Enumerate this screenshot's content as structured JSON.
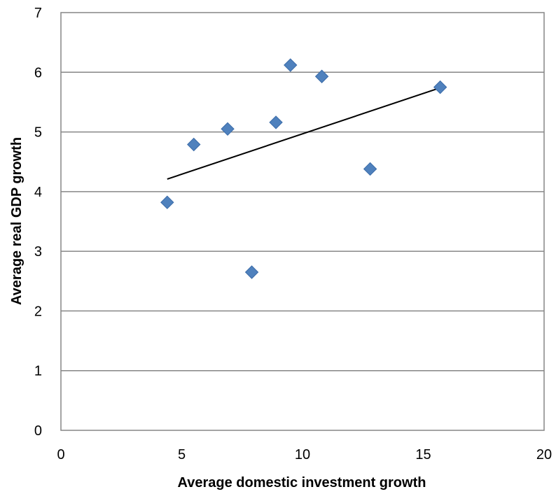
{
  "chart_data": {
    "type": "scatter",
    "title": "",
    "xlabel": "Average domestic investment growth",
    "ylabel": "Average real GDP growth",
    "xlim": [
      0,
      20
    ],
    "ylim": [
      0,
      7
    ],
    "x_ticks": [
      "0",
      "5",
      "10",
      "15",
      "20"
    ],
    "y_ticks": [
      "0",
      "1",
      "2",
      "3",
      "4",
      "5",
      "6",
      "7"
    ],
    "grid": "horizontal",
    "marker_color": "#4F81BD",
    "trendline_color": "#000000",
    "points": [
      {
        "x": 4.4,
        "y": 3.82
      },
      {
        "x": 5.5,
        "y": 4.79
      },
      {
        "x": 6.9,
        "y": 5.05
      },
      {
        "x": 7.9,
        "y": 2.65
      },
      {
        "x": 8.9,
        "y": 5.16
      },
      {
        "x": 9.5,
        "y": 6.12
      },
      {
        "x": 10.8,
        "y": 5.93
      },
      {
        "x": 12.8,
        "y": 4.38
      },
      {
        "x": 15.7,
        "y": 5.75
      }
    ],
    "trendline": {
      "x": [
        4.4,
        15.7
      ],
      "y": [
        4.21,
        5.74
      ]
    }
  }
}
